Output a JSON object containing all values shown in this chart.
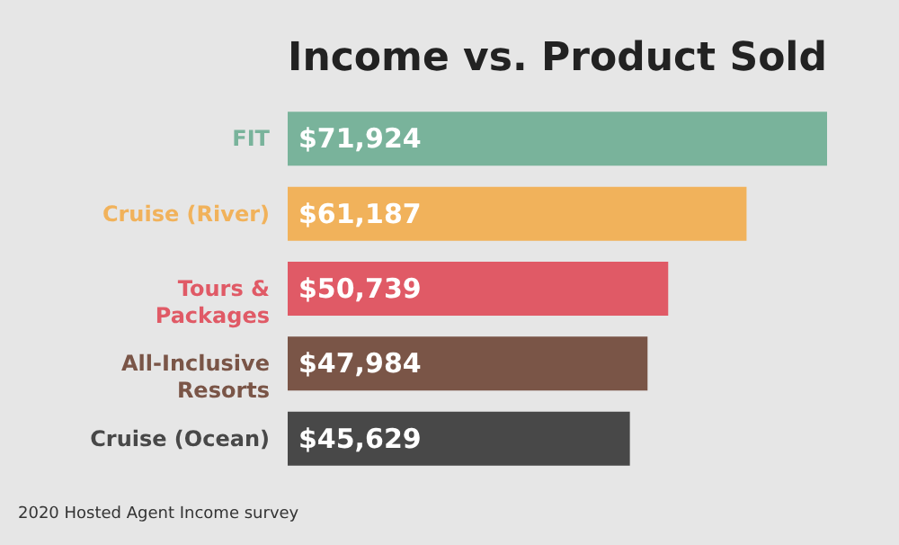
{
  "chart_data": {
    "type": "bar",
    "orientation": "horizontal",
    "title": "Income vs. Product Sold",
    "categories": [
      "FIT",
      "Cruise (River)",
      "Tours &\nPackages",
      "All-Inclusive\nResorts",
      "Cruise (Ocean)"
    ],
    "values": [
      71924,
      61187,
      50739,
      47984,
      45629
    ],
    "colors": [
      "#79b39b",
      "#f1b25b",
      "#e05a66",
      "#7a5547",
      "#484848"
    ],
    "value_labels": [
      "$71,924",
      "$61,187",
      "$50,739",
      "$47,984",
      "$45,629"
    ],
    "annotations": [
      "2020 Hosted Agent Income survey"
    ]
  }
}
